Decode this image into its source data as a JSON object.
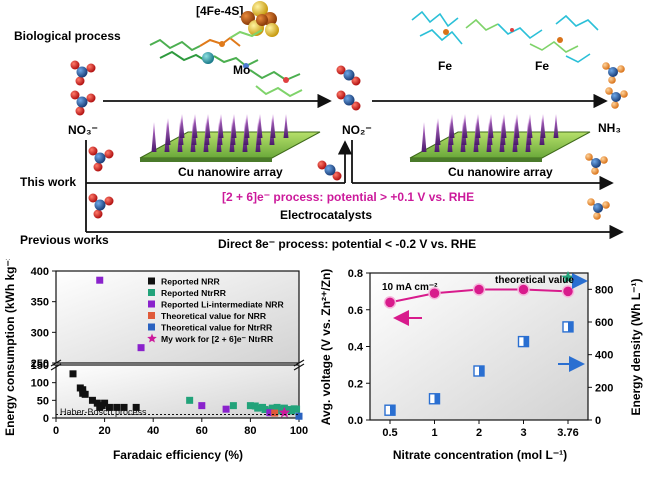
{
  "scheme": {
    "row_biological": "Biological process",
    "row_this_work": "This work",
    "row_previous": "Previous works",
    "cluster_label": "[4Fe-4S]",
    "metal_mo": "Mo",
    "metal_fe_1": "Fe",
    "metal_fe_2": "Fe",
    "species_no3": "NO₃⁻",
    "species_no2": "NO₂⁻",
    "species_nh3": "NH₃",
    "catalyst_1": "Cu nanowire array",
    "catalyst_2": "Cu nanowire array",
    "this_work_process": "[2 + 6]e⁻ process: potential > +0.1 V vs. RHE",
    "electrocatalysts": "Electrocatalysts",
    "previous_process": "Direct 8e⁻ process: potential < -0.2 V vs. RHE",
    "accent_purple": "#cc1a9b"
  },
  "chart_data": [
    {
      "type": "scatter",
      "xlabel": "Faradaic efficiency (%)",
      "ylabel": "Energy consumption (kWh kg⁻¹)",
      "xlim": [
        0,
        100
      ],
      "y_broken_axis": true,
      "ylim_lower": [
        0,
        150
      ],
      "ylim_upper": [
        250,
        400
      ],
      "xticks": [
        "0",
        "20",
        "40",
        "60",
        "80",
        "100"
      ],
      "yticks_lower": [
        "0",
        "50",
        "100",
        "150"
      ],
      "yticks_upper": [
        "250",
        "300",
        "350",
        "400"
      ],
      "annotation": "Haber-Bosch process",
      "reference_line_y": 10,
      "series": [
        {
          "name": "Reported NRR",
          "color": "#111111",
          "marker": "square",
          "points": [
            [
              7,
              125
            ],
            [
              10,
              85
            ],
            [
              11,
              70
            ],
            [
              12,
              67
            ],
            [
              11,
              80
            ],
            [
              15,
              50
            ],
            [
              17,
              42
            ],
            [
              18,
              30
            ],
            [
              20,
              42
            ],
            [
              19,
              35
            ],
            [
              22,
              30
            ],
            [
              25,
              30
            ],
            [
              28,
              30
            ],
            [
              33,
              30
            ]
          ]
        },
        {
          "name": "Reported NtrRR",
          "color": "#22a37a",
          "marker": "square",
          "points": [
            [
              55,
              50
            ],
            [
              73,
              35
            ],
            [
              80,
              35
            ],
            [
              82,
              34
            ],
            [
              83,
              28
            ],
            [
              85,
              30
            ],
            [
              86,
              24
            ],
            [
              88,
              20
            ],
            [
              89,
              28
            ],
            [
              90,
              25
            ],
            [
              91,
              30
            ],
            [
              92,
              20
            ],
            [
              93,
              26
            ],
            [
              94,
              28
            ],
            [
              95,
              22
            ],
            [
              96,
              24
            ],
            [
              97,
              20
            ],
            [
              98,
              26
            ],
            [
              99,
              25
            ]
          ]
        },
        {
          "name": "Reported Li-intermediate NRR",
          "color": "#8a22cc",
          "marker": "square",
          "points": [
            [
              18,
              385
            ],
            [
              35,
              275
            ],
            [
              60,
              35
            ],
            [
              70,
              25
            ],
            [
              88,
              15
            ]
          ]
        },
        {
          "name": "Theoretical value for NRR",
          "color": "#e05a3a",
          "marker": "square",
          "points": [
            [
              90,
              14
            ]
          ]
        },
        {
          "name": "Theoretical value for NtrRR",
          "color": "#2a62c0",
          "marker": "square",
          "points": [
            [
              100,
              5
            ]
          ]
        },
        {
          "name": "My work for [2 + 6]e⁻ NtrRR",
          "color": "#cc1a9b",
          "marker": "star",
          "points": [
            [
              94,
              15
            ]
          ]
        }
      ]
    },
    {
      "type": "line",
      "xlabel": "Nitrate concentration (mol L⁻¹)",
      "ylabel_left": "Avg. voltage (V vs. Zn²⁺/Zn)",
      "ylabel_right": "Energy density (Wh L⁻¹)",
      "categories": [
        "0.5",
        "1",
        "2",
        "3",
        "3.76"
      ],
      "annotation_current": "10 mA cm⁻²",
      "annotation_theory": "theoretical value",
      "ylim_left": [
        0.0,
        0.8
      ],
      "yticks_left": [
        "0.0",
        "0.2",
        "0.4",
        "0.6",
        "0.8"
      ],
      "ylim_right": [
        0,
        900
      ],
      "yticks_right": [
        "0",
        "200",
        "400",
        "600",
        "800"
      ],
      "series": [
        {
          "name": "Avg. voltage",
          "axis": "left",
          "color": "#d81b8c",
          "marker": "circle",
          "values": [
            0.64,
            0.69,
            0.71,
            0.71,
            0.7
          ]
        },
        {
          "name": "Energy density",
          "axis": "right",
          "color": "#2a6fd1",
          "marker": "half-square",
          "values": [
            60,
            130,
            300,
            480,
            570
          ]
        },
        {
          "name": "theoretical value",
          "axis": "right",
          "color": "#22a37a",
          "marker": "star",
          "values": [
            null,
            null,
            null,
            null,
            870
          ]
        }
      ]
    }
  ]
}
